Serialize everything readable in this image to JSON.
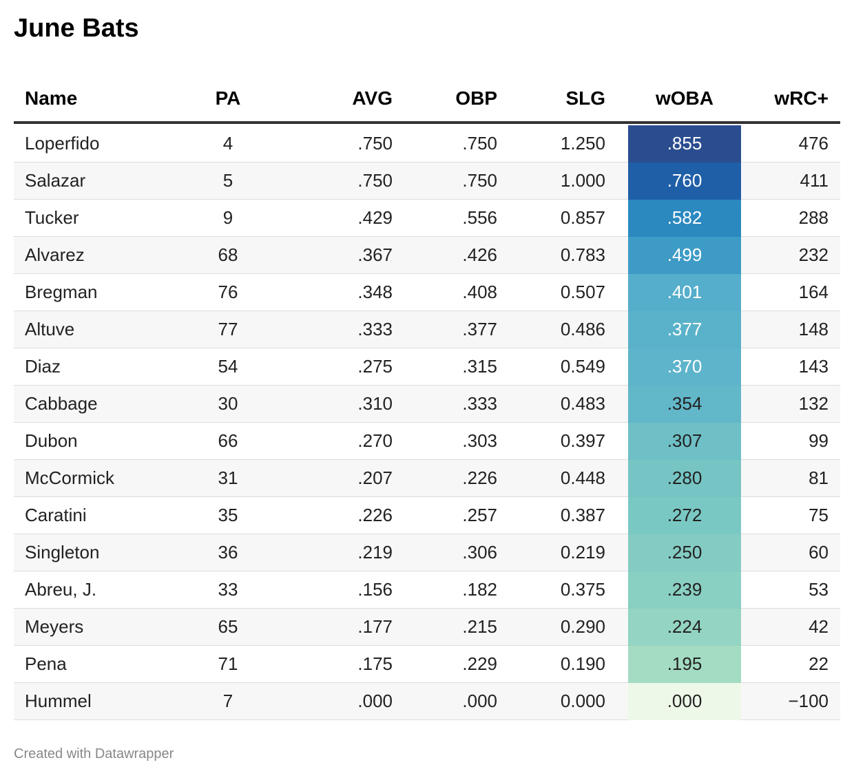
{
  "header": {
    "title": "June Bats"
  },
  "table": {
    "columns": [
      "Name",
      "PA",
      "AVG",
      "OBP",
      "SLG",
      "wOBA",
      "wRC+"
    ],
    "rows": [
      [
        "Loperfido",
        "4",
        ".750",
        ".750",
        "1.250",
        ".855",
        "476"
      ],
      [
        "Salazar",
        "5",
        ".750",
        ".750",
        "1.000",
        ".760",
        "411"
      ],
      [
        "Tucker",
        "9",
        ".429",
        ".556",
        "0.857",
        ".582",
        "288"
      ],
      [
        "Alvarez",
        "68",
        ".367",
        ".426",
        "0.783",
        ".499",
        "232"
      ],
      [
        "Bregman",
        "76",
        ".348",
        ".408",
        "0.507",
        ".401",
        "164"
      ],
      [
        "Altuve",
        "77",
        ".333",
        ".377",
        "0.486",
        ".377",
        "148"
      ],
      [
        "Diaz",
        "54",
        ".275",
        ".315",
        "0.549",
        ".370",
        "143"
      ],
      [
        "Cabbage",
        "30",
        ".310",
        ".333",
        "0.483",
        ".354",
        "132"
      ],
      [
        "Dubon",
        "66",
        ".270",
        ".303",
        "0.397",
        ".307",
        "99"
      ],
      [
        "McCormick",
        "31",
        ".207",
        ".226",
        "0.448",
        ".280",
        "81"
      ],
      [
        "Caratini",
        "35",
        ".226",
        ".257",
        "0.387",
        ".272",
        "75"
      ],
      [
        "Singleton",
        "36",
        ".219",
        ".306",
        "0.219",
        ".250",
        "60"
      ],
      [
        "Abreu, J.",
        "33",
        ".156",
        ".182",
        "0.375",
        ".239",
        "53"
      ],
      [
        "Meyers",
        "65",
        ".177",
        ".215",
        "0.290",
        ".224",
        "42"
      ],
      [
        "Pena",
        "71",
        ".175",
        ".229",
        "0.190",
        ".195",
        "22"
      ],
      [
        "Hummel",
        "7",
        ".000",
        ".000",
        "0.000",
        ".000",
        "−100"
      ]
    ],
    "heat_colors": [
      "#2a4d8f",
      "#1f5fa8",
      "#2b89c0",
      "#3d9bc6",
      "#55aecb",
      "#5ab2ca",
      "#5db4cb",
      "#62b7c9",
      "#6ec0c6",
      "#76c5c4",
      "#7ac8c4",
      "#84ccc3",
      "#89cfc2",
      "#93d4c2",
      "#a3dcc3",
      "#eef8e8"
    ],
    "heat_text_colors": [
      "#ffffff",
      "#ffffff",
      "#ffffff",
      "#ffffff",
      "#ffffff",
      "#ffffff",
      "#ffffff",
      "#222222",
      "#222222",
      "#222222",
      "#222222",
      "#222222",
      "#222222",
      "#222222",
      "#222222",
      "#222222"
    ]
  },
  "footer": {
    "credit": "Created with Datawrapper"
  }
}
